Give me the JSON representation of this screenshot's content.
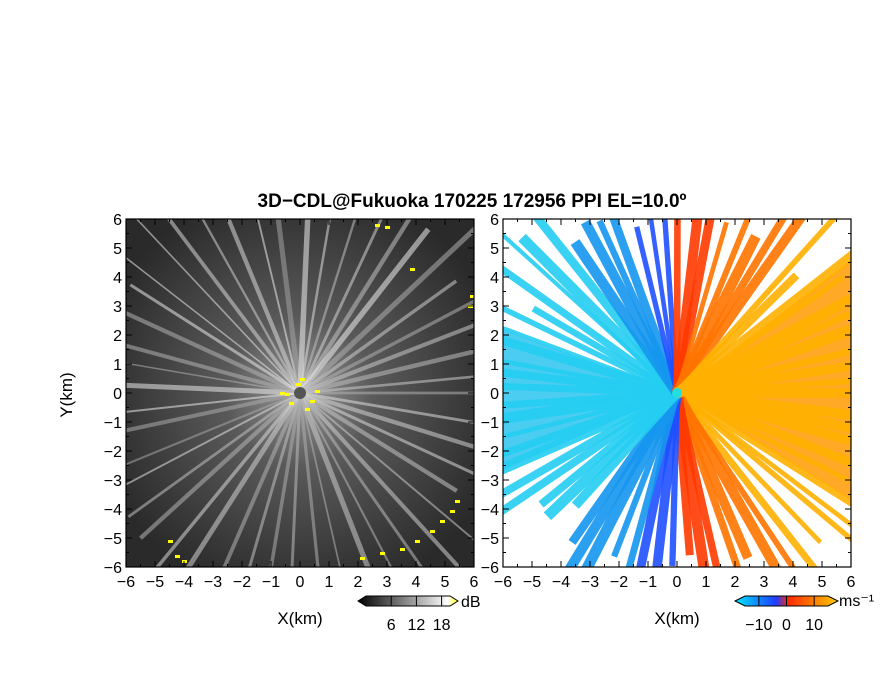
{
  "title": "3D−CDL@Fukuoka 170225 172956 PPI EL=10.0º",
  "chart_data": [
    {
      "type": "heatmap",
      "panel": "left",
      "variable": "echo intensity (grayscale)",
      "xlabel": "X(km)",
      "ylabel": "Y(km)",
      "xlim": [
        -6,
        6
      ],
      "ylim": [
        -6,
        6
      ],
      "xticks": [
        "−6",
        "−5",
        "−4",
        "−3",
        "−2",
        "−1",
        "0",
        "1",
        "2",
        "3",
        "4",
        "5",
        "6"
      ],
      "yticks": [
        "6",
        "5",
        "4",
        "3",
        "2",
        "1",
        "0",
        "−1",
        "−2",
        "−3",
        "−4",
        "−5",
        "−6"
      ],
      "colorbar": {
        "unit": "dB",
        "ticks": [
          "6",
          "12",
          "18"
        ],
        "values": [
          6,
          12,
          18
        ],
        "colors": [
          "#000000",
          "#ffffff",
          "#ffff00"
        ]
      },
      "background_color": "#2a2a2a"
    },
    {
      "type": "heatmap",
      "panel": "right",
      "variable": "radial velocity",
      "xlabel": "X(km)",
      "ylim": [
        -6,
        6
      ],
      "xlim": [
        -6,
        6
      ],
      "xticks": [
        "−6",
        "−5",
        "−4",
        "−3",
        "−2",
        "−1",
        "0",
        "1",
        "2",
        "3",
        "4",
        "5",
        "6"
      ],
      "yticks": [
        "6",
        "5",
        "4",
        "3",
        "2",
        "1",
        "0",
        "−1",
        "−2",
        "−3",
        "−4",
        "−5",
        "−6"
      ],
      "colorbar": {
        "unit": "ms⁻¹",
        "ticks": [
          "−10",
          "0",
          "10"
        ],
        "values": [
          -10,
          0,
          10
        ],
        "colors": [
          "#00e5ff",
          "#1e3cff",
          "#ff2a00",
          "#ffcc00"
        ]
      },
      "background_color": "#ffffff"
    }
  ]
}
